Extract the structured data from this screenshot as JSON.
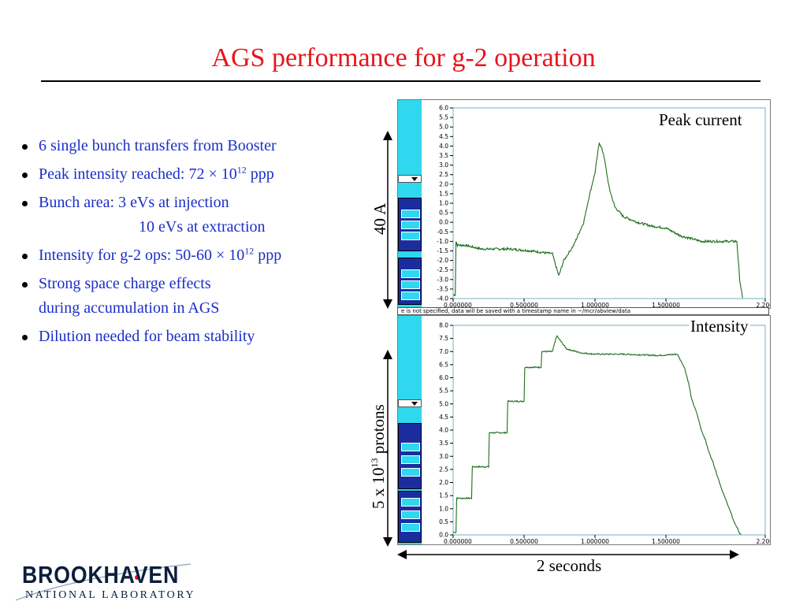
{
  "slide": {
    "title": "AGS performance for g-2 operation",
    "bullets": [
      {
        "lines": [
          {
            "text": "6 single bunch transfers from Booster"
          }
        ]
      },
      {
        "lines": [
          {
            "text": "Peak intensity reached: 72 × 10",
            "sup": "12",
            "after": " ppp"
          }
        ]
      },
      {
        "lines": [
          {
            "text": "Bunch area:   3 eVs at injection"
          },
          {
            "text": "10 eVs at extraction"
          }
        ]
      },
      {
        "lines": [
          {
            "text": "Intensity for g-2 ops: 50-60 × 10",
            "sup": "12",
            "after": " ppp"
          }
        ]
      },
      {
        "lines": [
          {
            "text": "Strong space charge effects"
          },
          {
            "text": "during accumulation in AGS"
          }
        ]
      },
      {
        "lines": [
          {
            "text": "Dilution needed for beam stability"
          }
        ]
      }
    ],
    "annotations": {
      "top_scale": "40 A",
      "bottom_scale_prefix": "5 x 10",
      "bottom_scale_sup": "13",
      "bottom_scale_suffix": " protons",
      "time_span": "2 seconds"
    },
    "logo": {
      "name": "BROOKHAVEN",
      "subtitle": "NATIONAL LABORATORY"
    },
    "colors": {
      "title": "#e8141b",
      "bullet_text": "#1a2ec8",
      "trace": "#1d6e1d",
      "cyan": "#2fd8ee"
    }
  },
  "chart_data": [
    {
      "type": "line",
      "title": "Peak current",
      "xlim": [
        0,
        2.2
      ],
      "ylim": [
        -4.0,
        6.0
      ],
      "x_ticks": [
        "0.000000",
        "0.500000",
        "1.000000",
        "1.500000",
        "2.200"
      ],
      "y_ticks": [
        "6.0",
        "5.5",
        "5.0",
        "4.5",
        "4.0",
        "3.5",
        "3.0",
        "2.5",
        "2.0",
        "1.5",
        "1.0",
        "0.5",
        "0.0",
        "-0.5",
        "-1.0",
        "-1.5",
        "-2.0",
        "-2.5",
        "-3.0",
        "-3.5",
        "-4.0"
      ],
      "status_text": "e is not specified, data will be saved with a timestamp name in ~/mcr/abview/data",
      "series": [
        {
          "x": [
            0,
            0.015,
            0.02,
            0.03,
            0.08,
            0.2,
            0.27,
            0.4,
            0.55,
            0.7,
            0.72,
            0.745,
            0.78,
            0.85,
            0.92,
            0.96,
            1.0,
            1.03,
            1.06,
            1.1,
            1.14,
            1.2,
            1.3,
            1.4,
            1.5,
            1.6,
            1.75,
            1.9,
            2.0,
            2.02,
            2.04
          ],
          "y": [
            -3.8,
            -3.8,
            -1.0,
            -1.2,
            -1.2,
            -1.4,
            -1.4,
            -1.4,
            -1.5,
            -1.65,
            -2.2,
            -2.8,
            -2.0,
            -1.2,
            0.0,
            1.4,
            2.6,
            4.2,
            3.6,
            1.8,
            0.8,
            0.3,
            0.0,
            -0.2,
            -0.3,
            -0.7,
            -1.0,
            -1.0,
            -1.0,
            -3.0,
            -4.0
          ]
        }
      ]
    },
    {
      "type": "line",
      "title": "Intensity",
      "xlim": [
        0,
        2.2
      ],
      "ylim": [
        0,
        8.0
      ],
      "x_ticks": [
        "0.000000",
        "0.500000",
        "1.000000",
        "1.500000",
        "2.200"
      ],
      "y_ticks": [
        "8.0",
        "7.5",
        "7.0",
        "6.5",
        "6.0",
        "5.5",
        "5.0",
        "4.5",
        "4.0",
        "3.5",
        "3.0",
        "2.5",
        "2.0",
        "1.5",
        "1.0",
        "0.5",
        "0.0"
      ],
      "series": [
        {
          "x": [
            0,
            0.02,
            0.025,
            0.13,
            0.135,
            0.25,
            0.255,
            0.38,
            0.385,
            0.5,
            0.505,
            0.62,
            0.625,
            0.7,
            0.73,
            0.8,
            0.9,
            1.0,
            1.2,
            1.45,
            1.58,
            1.63,
            1.66,
            1.68,
            1.72,
            1.75,
            1.78,
            1.8,
            1.83,
            1.86,
            1.89,
            1.91,
            1.94,
            1.96,
            1.98,
            2.0,
            2.02,
            2.03
          ],
          "y": [
            0.1,
            0.1,
            1.4,
            1.4,
            2.6,
            2.6,
            3.9,
            3.9,
            5.1,
            5.1,
            6.4,
            6.4,
            7.0,
            7.0,
            7.6,
            7.1,
            6.95,
            6.9,
            6.9,
            6.85,
            6.9,
            6.4,
            5.8,
            5.2,
            4.6,
            4.0,
            3.6,
            3.2,
            2.8,
            2.3,
            1.8,
            1.5,
            1.1,
            0.8,
            0.5,
            0.3,
            0.05,
            0.0
          ]
        }
      ]
    }
  ]
}
